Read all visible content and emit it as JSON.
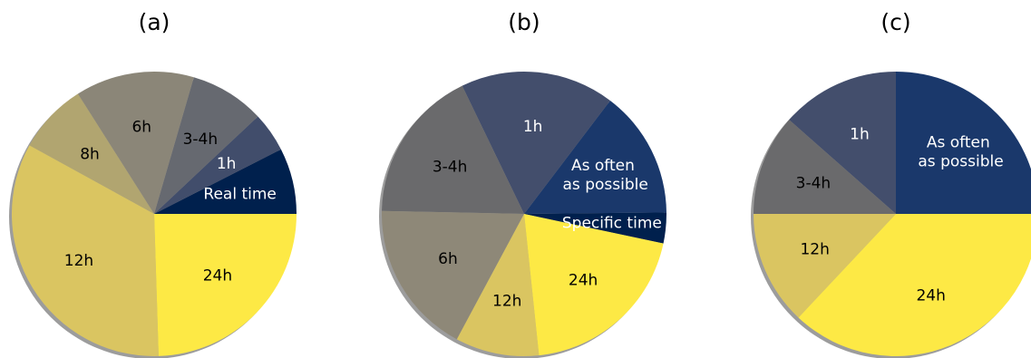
{
  "chart_data": [
    {
      "type": "pie",
      "title": "(a)",
      "start_angle_deg": 0,
      "direction": "counterclockwise",
      "slices": [
        {
          "label": "Real time",
          "value": 7.5,
          "color": "#00204d",
          "label_color": "#ffffff"
        },
        {
          "label": "1h",
          "value": 4.5,
          "color": "#414d6b",
          "label_color": "#ffffff"
        },
        {
          "label": "3-4h",
          "value": 8.5,
          "color": "#666970",
          "label_color": "#000000"
        },
        {
          "label": "6h",
          "value": 13.5,
          "color": "#8b8678",
          "label_color": "#000000"
        },
        {
          "label": "8h",
          "value": 8.0,
          "color": "#b1a570",
          "label_color": "#000000"
        },
        {
          "label": "12h",
          "value": 33.5,
          "color": "#dac561",
          "label_color": "#000000"
        },
        {
          "label": "24h",
          "value": 24.5,
          "color": "#fde945",
          "label_color": "#000000"
        }
      ]
    },
    {
      "type": "pie",
      "title": "(b)",
      "start_angle_deg": -12,
      "direction": "counterclockwise",
      "slices": [
        {
          "label": "Specific time",
          "value": 3.5,
          "color": "#00204d",
          "label_color": "#ffffff"
        },
        {
          "label": "As often\n as possible",
          "value": 14.5,
          "color": "#1a386b",
          "label_color": "#ffffff"
        },
        {
          "label": "1h",
          "value": 17.5,
          "color": "#434e6c",
          "label_color": "#ffffff"
        },
        {
          "label": "3-4h",
          "value": 17.5,
          "color": "#6a6a6c",
          "label_color": "#000000"
        },
        {
          "label": "6h",
          "value": 17.5,
          "color": "#8e8878",
          "label_color": "#000000"
        },
        {
          "label": "12h",
          "value": 9.5,
          "color": "#dac561",
          "label_color": "#000000"
        },
        {
          "label": "24h",
          "value": 20.0,
          "color": "#fde945",
          "label_color": "#000000"
        }
      ]
    },
    {
      "type": "pie",
      "title": "(c)",
      "start_angle_deg": 0,
      "direction": "counterclockwise",
      "slices": [
        {
          "label": "As often\n as possible",
          "value": 25.0,
          "color": "#1a386b",
          "label_color": "#ffffff"
        },
        {
          "label": "1h",
          "value": 13.5,
          "color": "#434e6c",
          "label_color": "#ffffff"
        },
        {
          "label": "3-4h",
          "value": 11.5,
          "color": "#6a6a6c",
          "label_color": "#000000"
        },
        {
          "label": "12h",
          "value": 13.0,
          "color": "#dac561",
          "label_color": "#000000"
        },
        {
          "label": "24h",
          "value": 37.0,
          "color": "#fde945",
          "label_color": "#000000"
        }
      ]
    }
  ]
}
